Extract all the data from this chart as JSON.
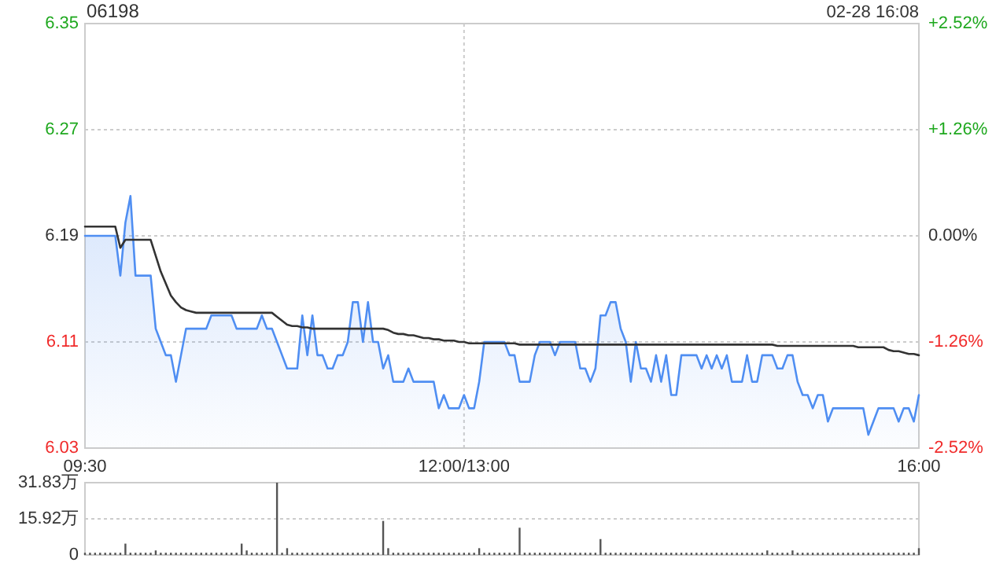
{
  "chart_data": [
    {
      "type": "line",
      "title": "06198",
      "annotations": [
        "02-28 16:08"
      ],
      "categories": [
        "09:30",
        null,
        null,
        null,
        null,
        null,
        null,
        null,
        null,
        null,
        null,
        null,
        null,
        null,
        null,
        null,
        null,
        null,
        null,
        null,
        null,
        null,
        null,
        null,
        null,
        null,
        null,
        null,
        null,
        null,
        null,
        null,
        null,
        null,
        null,
        null,
        null,
        null,
        null,
        null,
        null,
        null,
        null,
        null,
        null,
        null,
        null,
        null,
        null,
        null,
        null,
        null,
        null,
        null,
        null,
        null,
        null,
        null,
        null,
        null,
        null,
        null,
        null,
        null,
        null,
        null,
        null,
        null,
        null,
        null,
        null,
        null,
        null,
        null,
        null,
        "12:00/13:00",
        null,
        null,
        null,
        null,
        null,
        null,
        null,
        null,
        null,
        null,
        null,
        null,
        null,
        null,
        null,
        null,
        null,
        null,
        null,
        null,
        null,
        null,
        null,
        null,
        null,
        null,
        null,
        null,
        null,
        null,
        null,
        null,
        null,
        null,
        null,
        null,
        null,
        null,
        null,
        null,
        null,
        null,
        null,
        null,
        null,
        null,
        null,
        null,
        null,
        null,
        null,
        null,
        null,
        null,
        null,
        null,
        null,
        null,
        null,
        null,
        null,
        null,
        null,
        null,
        null,
        null,
        null,
        null,
        null,
        null,
        null,
        null,
        null,
        null,
        null,
        null,
        null,
        null,
        null,
        null,
        null,
        null,
        null,
        null,
        null,
        null,
        null,
        null,
        null,
        "16:00"
      ],
      "ylim": [
        6.03,
        6.35
      ],
      "yticks": [
        6.03,
        6.11,
        6.19,
        6.27,
        6.35
      ],
      "y2lim": [
        -2.52,
        2.52
      ],
      "y2ticks": [
        {
          "value": -2.52,
          "label": "-2.52%"
        },
        {
          "value": -1.26,
          "label": "-1.26%"
        },
        {
          "value": 0,
          "label": "0.00%"
        },
        {
          "value": 1.26,
          "label": "+1.26%"
        },
        {
          "value": 2.52,
          "label": "+2.52%"
        }
      ],
      "grid": true,
      "series": [
        {
          "type": "area",
          "color": "#4f8ef2",
          "values": [
            6.19,
            6.19,
            6.19,
            6.19,
            6.19,
            6.19,
            6.19,
            6.16,
            6.2,
            6.22,
            6.16,
            6.16,
            6.16,
            6.16,
            6.12,
            6.11,
            6.1,
            6.1,
            6.08,
            6.1,
            6.12,
            6.12,
            6.12,
            6.12,
            6.12,
            6.13,
            6.13,
            6.13,
            6.13,
            6.13,
            6.12,
            6.12,
            6.12,
            6.12,
            6.12,
            6.13,
            6.12,
            6.12,
            6.11,
            6.1,
            6.09,
            6.09,
            6.09,
            6.13,
            6.1,
            6.13,
            6.1,
            6.1,
            6.09,
            6.09,
            6.1,
            6.1,
            6.11,
            6.14,
            6.14,
            6.11,
            6.14,
            6.11,
            6.11,
            6.09,
            6.1,
            6.08,
            6.08,
            6.08,
            6.09,
            6.08,
            6.08,
            6.08,
            6.08,
            6.08,
            6.06,
            6.07,
            6.06,
            6.06,
            6.06,
            6.07,
            6.06,
            6.06,
            6.08,
            6.11,
            6.11,
            6.11,
            6.11,
            6.11,
            6.1,
            6.1,
            6.08,
            6.08,
            6.08,
            6.1,
            6.11,
            6.11,
            6.11,
            6.1,
            6.11,
            6.11,
            6.11,
            6.11,
            6.09,
            6.09,
            6.08,
            6.09,
            6.13,
            6.13,
            6.14,
            6.14,
            6.12,
            6.11,
            6.08,
            6.11,
            6.09,
            6.09,
            6.08,
            6.1,
            6.08,
            6.1,
            6.07,
            6.07,
            6.1,
            6.1,
            6.1,
            6.1,
            6.09,
            6.1,
            6.09,
            6.1,
            6.09,
            6.1,
            6.08,
            6.08,
            6.08,
            6.1,
            6.08,
            6.08,
            6.1,
            6.1,
            6.1,
            6.09,
            6.09,
            6.1,
            6.1,
            6.08,
            6.07,
            6.07,
            6.06,
            6.07,
            6.07,
            6.05,
            6.06,
            6.06,
            6.06,
            6.06,
            6.06,
            6.06,
            6.06,
            6.04,
            6.05,
            6.06,
            6.06,
            6.06,
            6.06,
            6.05,
            6.06,
            6.06,
            6.05,
            6.07
          ]
        },
        {
          "color": "#333333",
          "values": [
            6.197,
            6.197,
            6.197,
            6.197,
            6.197,
            6.197,
            6.197,
            6.181,
            6.187,
            6.187,
            6.187,
            6.187,
            6.187,
            6.187,
            6.175,
            6.163,
            6.154,
            6.145,
            6.14,
            6.136,
            6.134,
            6.133,
            6.132,
            6.132,
            6.132,
            6.132,
            6.132,
            6.132,
            6.132,
            6.132,
            6.132,
            6.132,
            6.132,
            6.132,
            6.132,
            6.132,
            6.132,
            6.132,
            6.129,
            6.126,
            6.123,
            6.122,
            6.122,
            6.121,
            6.121,
            6.12,
            6.12,
            6.12,
            6.12,
            6.12,
            6.12,
            6.12,
            6.12,
            6.12,
            6.12,
            6.12,
            6.12,
            6.12,
            6.12,
            6.12,
            6.119,
            6.117,
            6.116,
            6.116,
            6.115,
            6.115,
            6.114,
            6.113,
            6.113,
            6.112,
            6.112,
            6.111,
            6.111,
            6.111,
            6.11,
            6.11,
            6.109,
            6.109,
            6.109,
            6.109,
            6.109,
            6.109,
            6.109,
            6.109,
            6.109,
            6.109,
            6.108,
            6.108,
            6.108,
            6.108,
            6.108,
            6.108,
            6.108,
            6.108,
            6.108,
            6.108,
            6.108,
            6.108,
            6.108,
            6.108,
            6.108,
            6.108,
            6.108,
            6.108,
            6.108,
            6.108,
            6.108,
            6.108,
            6.108,
            6.108,
            6.108,
            6.108,
            6.108,
            6.108,
            6.108,
            6.108,
            6.108,
            6.108,
            6.108,
            6.108,
            6.108,
            6.108,
            6.108,
            6.108,
            6.108,
            6.108,
            6.108,
            6.108,
            6.108,
            6.108,
            6.108,
            6.108,
            6.108,
            6.108,
            6.108,
            6.108,
            6.108,
            6.107,
            6.107,
            6.107,
            6.107,
            6.107,
            6.107,
            6.107,
            6.107,
            6.107,
            6.107,
            6.107,
            6.107,
            6.107,
            6.107,
            6.107,
            6.107,
            6.106,
            6.106,
            6.106,
            6.106,
            6.106,
            6.106,
            6.104,
            6.103,
            6.103,
            6.102,
            6.101,
            6.101,
            6.1
          ]
        }
      ]
    },
    {
      "type": "bar",
      "color": "#555555",
      "tick_labels": "y",
      "categories": [
        null,
        null,
        null,
        null,
        null,
        null,
        null,
        null,
        null,
        null,
        null,
        null,
        null,
        null,
        null,
        null,
        null,
        null,
        null,
        null,
        null,
        null,
        null,
        null,
        null,
        null,
        null,
        null,
        null,
        null,
        null,
        null,
        null,
        null,
        null,
        null,
        null,
        null,
        null,
        null,
        null,
        null,
        null,
        null,
        null,
        null,
        null,
        null,
        null,
        null,
        null,
        null,
        null,
        null,
        null,
        null,
        null,
        null,
        null,
        null,
        null,
        null,
        null,
        null,
        null,
        null,
        null,
        null,
        null,
        null,
        null,
        null,
        null,
        null,
        null,
        null,
        null,
        null,
        null,
        null,
        null,
        null,
        null,
        null,
        null,
        null,
        null,
        null,
        null,
        null,
        null,
        null,
        null,
        null,
        null,
        null,
        null,
        null,
        null,
        null,
        null,
        null,
        null,
        null,
        null,
        null,
        null,
        null,
        null,
        null,
        null,
        null,
        null,
        null,
        null,
        null,
        null,
        null,
        null,
        null,
        null,
        null,
        null,
        null,
        null,
        null,
        null,
        null,
        null,
        null,
        null,
        null,
        null,
        null,
        null,
        null,
        null,
        null,
        null,
        null,
        null,
        null,
        null,
        null,
        null,
        null,
        null,
        null,
        null,
        null,
        null,
        null,
        null,
        null,
        null,
        null,
        null,
        null,
        null,
        null,
        null,
        null,
        null,
        null,
        null,
        null
      ],
      "ylim": [
        0,
        31.83
      ],
      "yticks": [
        {
          "value": 0,
          "label": "0"
        },
        {
          "value": 15.92,
          "label": "15.92万"
        },
        {
          "value": 31.83,
          "label": "31.83万"
        }
      ],
      "grid": "y",
      "values": [
        1,
        1,
        1,
        1,
        1,
        1,
        1,
        1,
        5,
        1,
        1,
        1,
        1,
        1,
        2,
        1,
        1,
        1,
        1,
        1,
        1,
        1,
        1,
        1,
        1,
        1,
        1,
        1,
        1,
        1,
        1,
        5,
        2,
        1,
        1,
        1,
        1,
        1,
        31.83,
        1,
        3,
        1,
        1,
        1,
        1,
        1,
        1,
        1,
        1,
        1,
        1,
        1,
        1,
        1,
        1,
        1,
        1,
        1,
        1,
        15,
        3,
        1,
        1,
        1,
        1,
        1,
        1,
        1,
        1,
        1,
        1,
        1,
        1,
        1,
        1,
        1,
        1,
        1,
        3,
        1,
        1,
        1,
        1,
        1,
        1,
        1,
        12,
        1,
        1,
        1,
        1,
        1,
        1,
        1,
        1,
        1,
        1,
        1,
        1,
        1,
        1,
        1,
        7,
        1,
        1,
        1,
        1,
        1,
        1,
        1,
        1,
        1,
        1,
        1,
        1,
        1,
        1,
        1,
        1,
        1,
        1,
        1,
        1,
        1,
        1,
        1,
        1,
        1,
        1,
        1,
        1,
        1,
        1,
        1,
        1,
        2,
        1,
        1,
        1,
        1,
        2,
        1,
        1,
        1,
        1,
        1,
        1,
        1,
        1,
        1,
        1,
        1,
        1,
        1,
        1,
        1,
        1,
        1,
        1,
        1,
        1,
        1,
        1,
        1,
        1,
        3
      ]
    }
  ]
}
